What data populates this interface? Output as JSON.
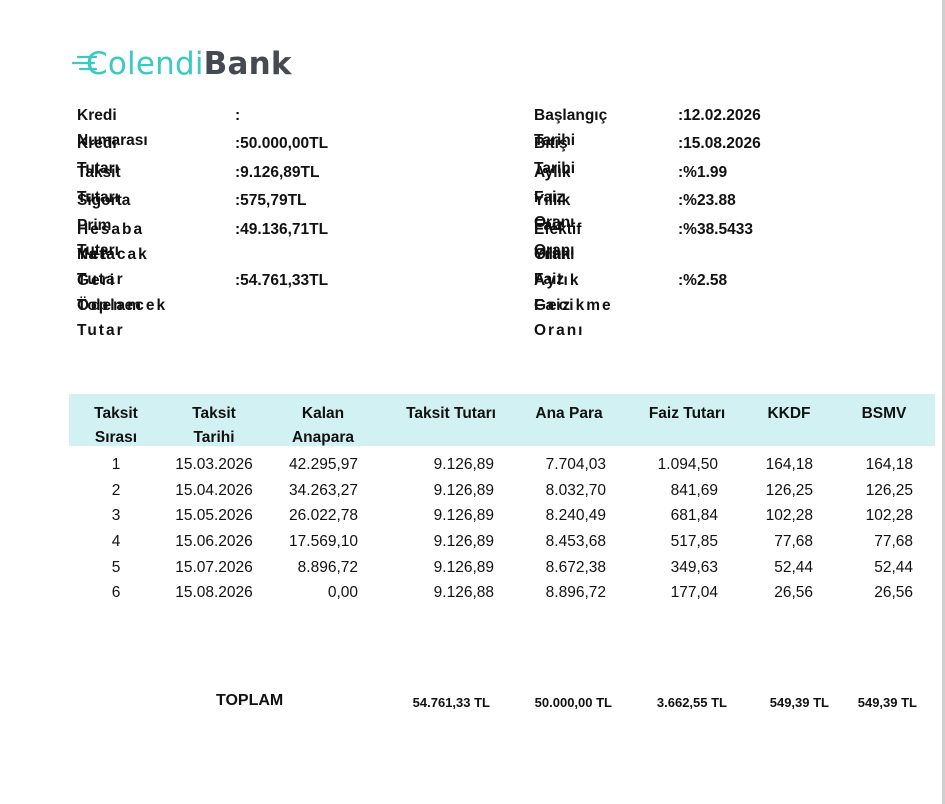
{
  "bank": {
    "logo_part1": "Colendi",
    "logo_part2": "Bank",
    "brand_colors": {
      "accent": "#3cc9c4",
      "dark": "#454a52",
      "header_bg": "#d2f1f3"
    }
  },
  "left_info": [
    {
      "label": "Kredi Numarası",
      "value": ":"
    },
    {
      "label": "Kredi Tutarı",
      "value": ":50.000,00TL"
    },
    {
      "label": "Taksit Tutarı",
      "value": ":9.126,89TL"
    },
    {
      "label": "Sigorta Prim Tutarı",
      "value": ":575,79TL"
    },
    {
      "label_line1": "Hesaba Yatacak",
      "label_line2": "Net Tutar",
      "value": ":49.136,71TL"
    },
    {
      "label_line1": "Geri Ödenecek",
      "label_line2": "Toplam Tutar",
      "value": ":54.761,33TL"
    }
  ],
  "right_info": [
    {
      "label": "Başlangıç Tarihi",
      "value": ":12.02.2026"
    },
    {
      "label": "Bitiş Tarihi",
      "value": ":15.08.2026"
    },
    {
      "label": "Aylık Faiz Oranı",
      "value": ":%1.99"
    },
    {
      "label": "Yıllık Faiz Oranı",
      "value": ":%23.88"
    },
    {
      "label_line1": "Efektif Yıllık Faiz",
      "label_line2": "Oranı",
      "value": ":%38.5433"
    },
    {
      "label_line1": "Aylık Gecikme",
      "label_line2": "Faiz Oranı",
      "value": ":%2.58"
    }
  ],
  "table": {
    "headers": [
      {
        "line1": "Taksit",
        "line2": "Sırası"
      },
      {
        "line1": "Taksit",
        "line2": "Tarihi"
      },
      {
        "line1": "Kalan",
        "line2": "Anapara"
      },
      {
        "line1": "Taksit Tutarı",
        "line2": ""
      },
      {
        "line1": "Ana Para",
        "line2": ""
      },
      {
        "line1": "Faiz Tutarı",
        "line2": ""
      },
      {
        "line1": "KKDF",
        "line2": ""
      },
      {
        "line1": "BSMV",
        "line2": ""
      }
    ],
    "rows": [
      [
        "1",
        "15.03.2026",
        "42.295,97",
        "9.126,89",
        "7.704,03",
        "1.094,50",
        "164,18",
        "164,18"
      ],
      [
        "2",
        "15.04.2026",
        "34.263,27",
        "9.126,89",
        "8.032,70",
        "841,69",
        "126,25",
        "126,25"
      ],
      [
        "3",
        "15.05.2026",
        "26.022,78",
        "9.126,89",
        "8.240,49",
        "681,84",
        "102,28",
        "102,28"
      ],
      [
        "4",
        "15.06.2026",
        "17.569,10",
        "9.126,89",
        "8.453,68",
        "517,85",
        "77,68",
        "77,68"
      ],
      [
        "5",
        "15.07.2026",
        "8.896,72",
        "9.126,89",
        "8.672,38",
        "349,63",
        "52,44",
        "52,44"
      ],
      [
        "6",
        "15.08.2026",
        "0,00",
        "9.126,88",
        "8.896,72",
        "177,04",
        "26,56",
        "26,56"
      ]
    ],
    "total_label": "TOPLAM",
    "totals": [
      "54.761,33 TL",
      "50.000,00 TL",
      "3.662,55 TL",
      "549,39 TL",
      "549,39 TL"
    ]
  }
}
